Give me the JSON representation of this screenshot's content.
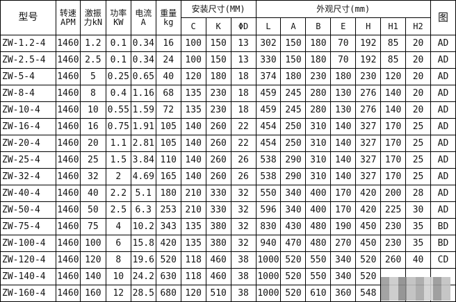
{
  "headers": {
    "model": "型号",
    "speed": [
      "转速",
      "APM"
    ],
    "force": [
      "激振",
      "力kN"
    ],
    "power": [
      "功率",
      "KW"
    ],
    "current": [
      "电流",
      "A"
    ],
    "weight": [
      "重量",
      "kg"
    ],
    "install_group": "安装尺寸(MM)",
    "install_cols": [
      "C",
      "K",
      "ΦD"
    ],
    "outer_group": "外观尺寸(mm)",
    "outer_cols": [
      "L",
      "A",
      "B",
      "E",
      "H",
      "H1",
      "H2"
    ],
    "figure": "图"
  },
  "rows": [
    [
      "ZW-1.2-4",
      "1460",
      "1.2",
      "0.1",
      "0.34",
      "16",
      "100",
      "150",
      "13",
      "302",
      "150",
      "180",
      "70",
      "192",
      "85",
      "20",
      "AD"
    ],
    [
      "ZW-2.5-4",
      "1460",
      "2.5",
      "0.1",
      "0.34",
      "24",
      "100",
      "150",
      "13",
      "330",
      "150",
      "180",
      "70",
      "192",
      "85",
      "20",
      "AD"
    ],
    [
      "ZW-5-4",
      "1460",
      "5",
      "0.25",
      "0.65",
      "40",
      "120",
      "180",
      "18",
      "374",
      "180",
      "230",
      "180",
      "230",
      "120",
      "20",
      "AD"
    ],
    [
      "ZW-8-4",
      "1460",
      "8",
      "0.4",
      "1.16",
      "68",
      "135",
      "230",
      "18",
      "459",
      "245",
      "280",
      "130",
      "276",
      "140",
      "20",
      "AD"
    ],
    [
      "ZW-10-4",
      "1460",
      "10",
      "0.55",
      "1.59",
      "72",
      "135",
      "230",
      "18",
      "459",
      "245",
      "280",
      "130",
      "276",
      "140",
      "20",
      "AD"
    ],
    [
      "ZW-16-4",
      "1460",
      "16",
      "0.75",
      "1.91",
      "105",
      "140",
      "260",
      "22",
      "454",
      "250",
      "310",
      "140",
      "327",
      "170",
      "25",
      "AD"
    ],
    [
      "ZW-20-4",
      "1460",
      "20",
      "1.1",
      "2.81",
      "105",
      "140",
      "260",
      "22",
      "454",
      "250",
      "310",
      "140",
      "327",
      "170",
      "25",
      "AD"
    ],
    [
      "ZW-25-4",
      "1460",
      "25",
      "1.5",
      "3.84",
      "110",
      "140",
      "260",
      "26",
      "538",
      "290",
      "310",
      "140",
      "327",
      "170",
      "25",
      "AD"
    ],
    [
      "ZW-32-4",
      "1460",
      "32",
      "2",
      "4.69",
      "165",
      "140",
      "260",
      "26",
      "538",
      "290",
      "310",
      "140",
      "327",
      "170",
      "25",
      "AD"
    ],
    [
      "ZW-40-4",
      "1460",
      "40",
      "2.2",
      "5.1",
      "180",
      "210",
      "330",
      "32",
      "550",
      "340",
      "400",
      "170",
      "420",
      "200",
      "28",
      "AD"
    ],
    [
      "ZW-50-4",
      "1460",
      "50",
      "2.5",
      "6.3",
      "253",
      "210",
      "330",
      "32",
      "596",
      "340",
      "400",
      "170",
      "420",
      "225",
      "30",
      "AD"
    ],
    [
      "ZW-75-4",
      "1460",
      "75",
      "4",
      "10.2",
      "343",
      "135",
      "380",
      "32",
      "830",
      "430",
      "480",
      "190",
      "450",
      "230",
      "35",
      "BD"
    ],
    [
      "ZW-100-4",
      "1460",
      "100",
      "6",
      "15.8",
      "420",
      "135",
      "380",
      "32",
      "940",
      "470",
      "480",
      "270",
      "450",
      "230",
      "35",
      "BD"
    ],
    [
      "ZW-120-4",
      "1460",
      "120",
      "8",
      "19.6",
      "520",
      "118",
      "460",
      "38",
      "1000",
      "520",
      "550",
      "340",
      "520",
      "260",
      "40",
      "CD"
    ],
    [
      "ZW-140-4",
      "1460",
      "140",
      "10",
      "24.2",
      "630",
      "118",
      "460",
      "38",
      "1000",
      "520",
      "550",
      "340",
      "520",
      "",
      "",
      ""
    ],
    [
      "ZW-160-4",
      "1460",
      "160",
      "12",
      "28.5",
      "680",
      "120",
      "510",
      "38",
      "1000",
      "520",
      "610",
      "360",
      "548",
      "",
      "",
      ""
    ]
  ]
}
